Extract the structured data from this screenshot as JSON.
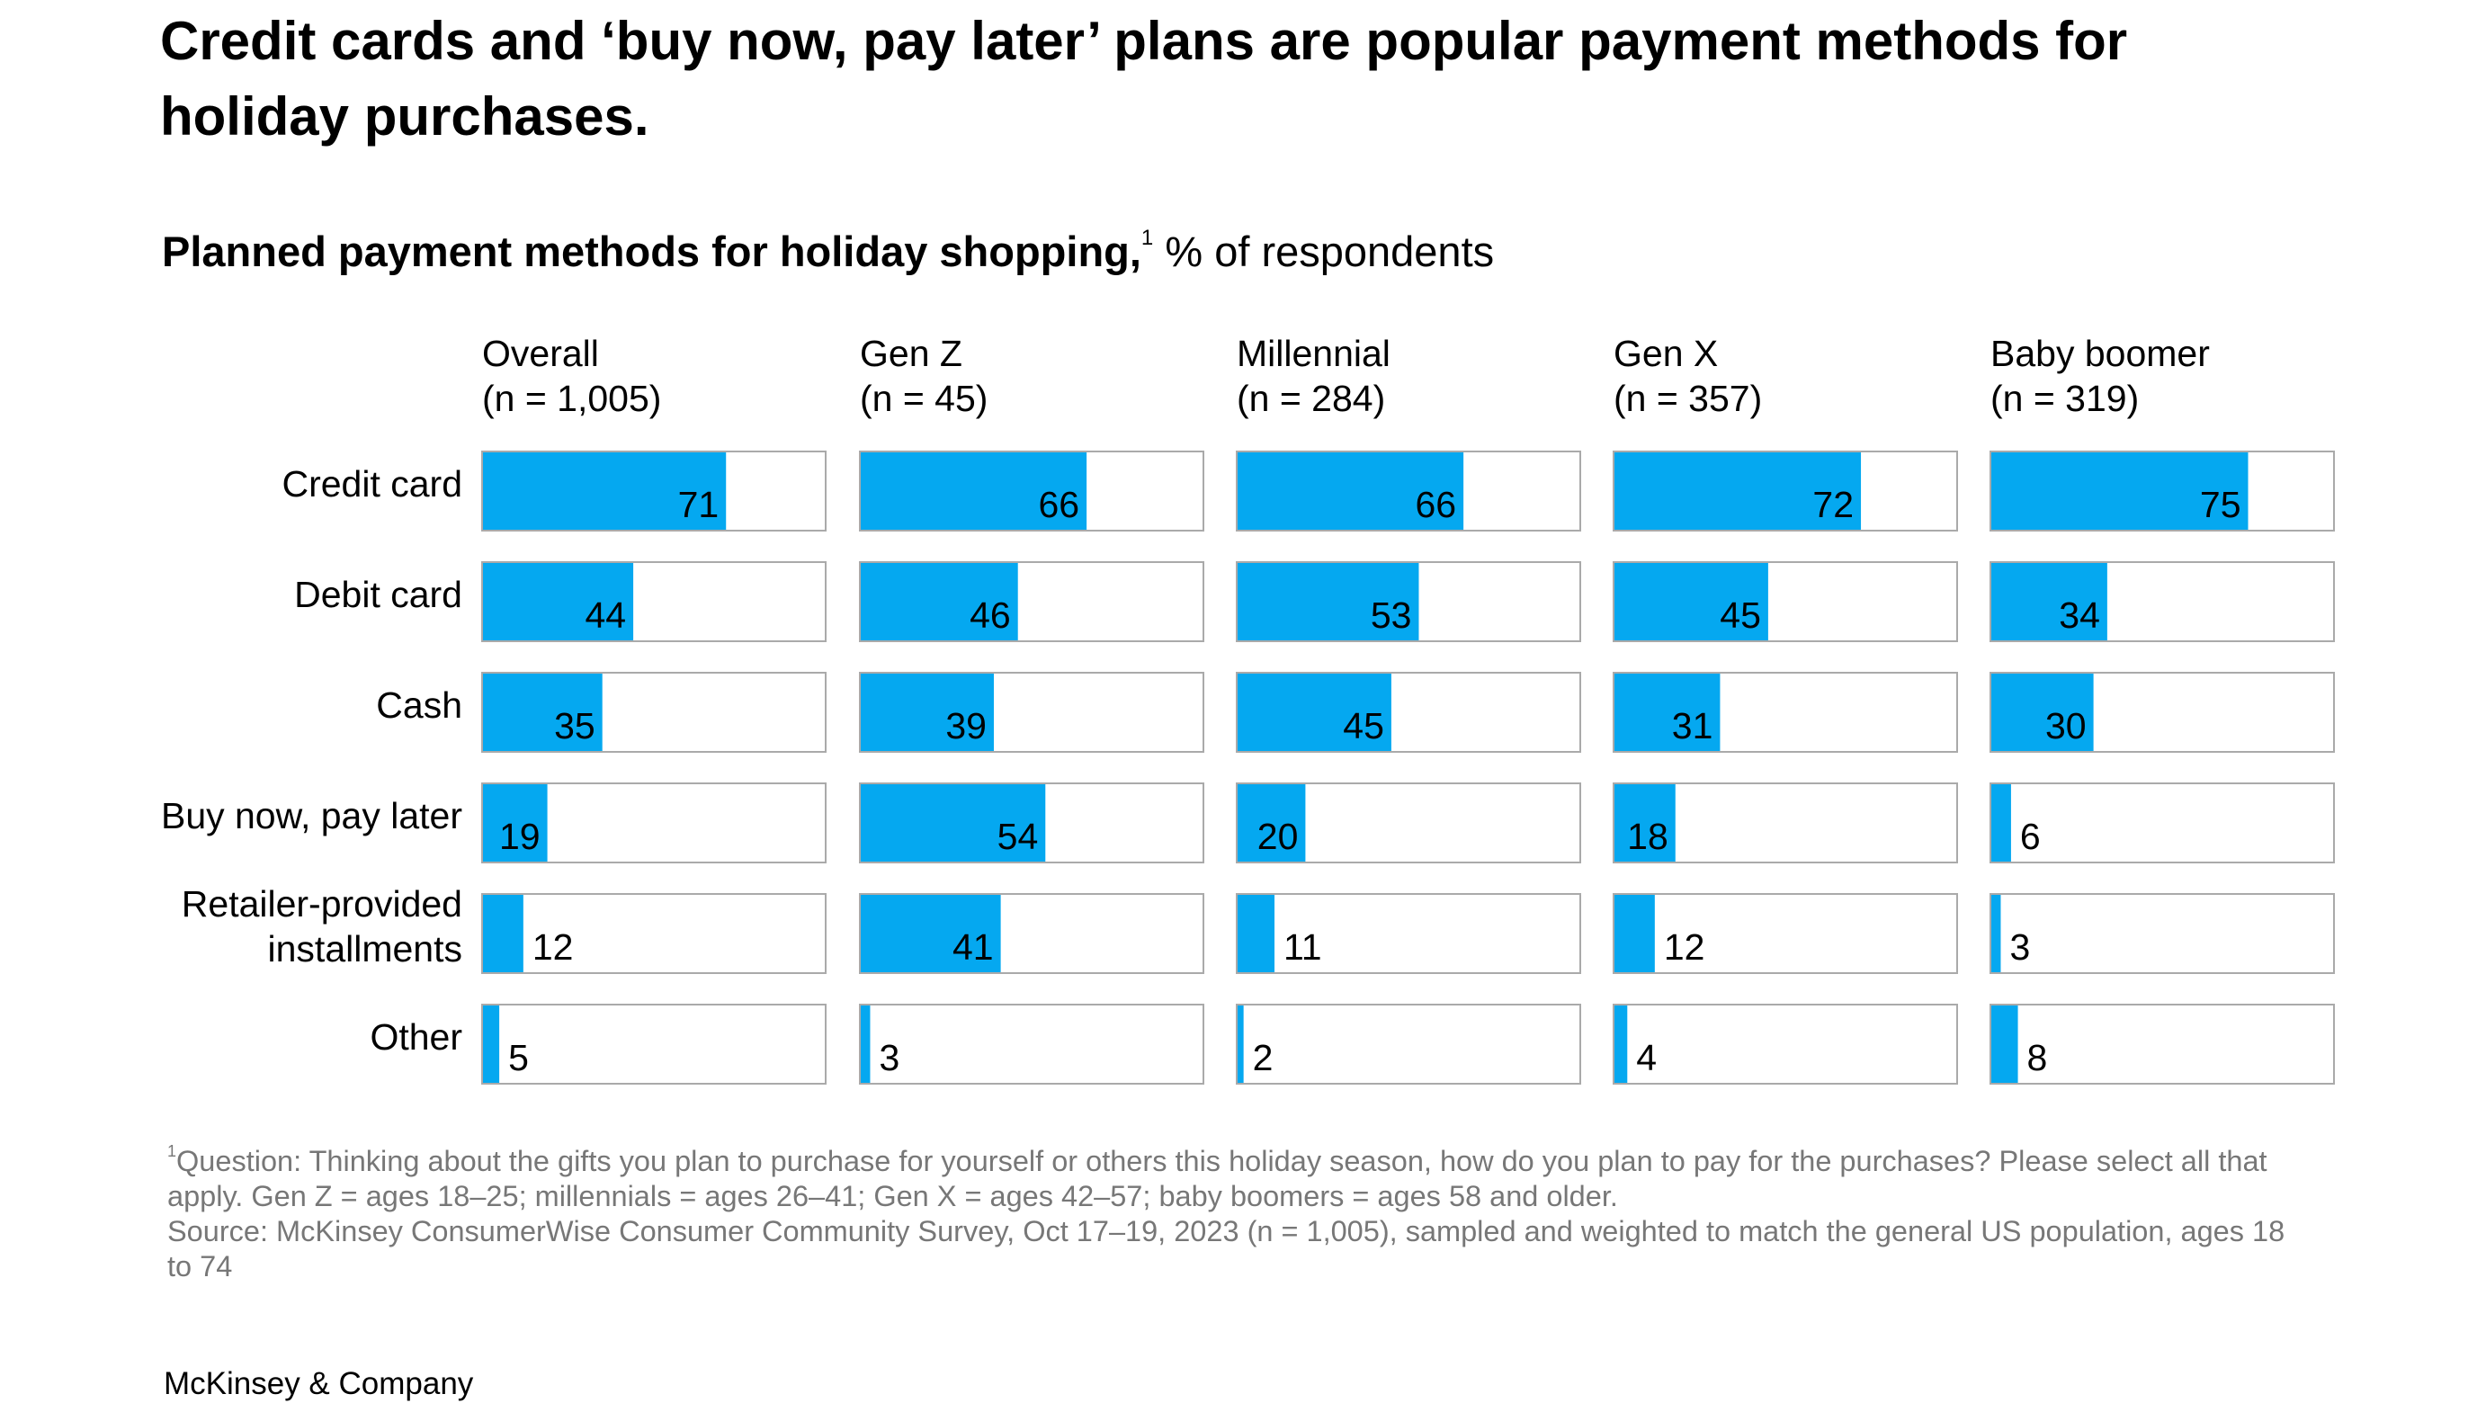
{
  "title": "Credit cards and ‘buy now, pay later’ plans are popular payment methods for holiday purchases.",
  "subtitle": {
    "bold": "Planned payment methods for holiday shopping,",
    "sup": "1",
    "unit": " % of respondents"
  },
  "footnote": {
    "sup": "1",
    "question": "Question: Thinking about the gifts you plan to purchase for yourself or others this holiday season, how do you plan to pay for the purchases? Please select all that apply. Gen Z = ages 18–25; millennials = ages 26–41; Gen X = ages 42–57; baby boomers = ages 58 and older.",
    "source": "Source: McKinsey ConsumerWise Consumer Community Survey, Oct 17–19, 2023 (n = 1,005), sampled and weighted to match the general US population, ages 18 to 74"
  },
  "brand": "McKinsey & Company",
  "colors": {
    "bar": "#05A8F0",
    "frame": "#AAAAAA",
    "text": "#000000",
    "footnote": "#777777"
  },
  "chart_data": {
    "type": "bar",
    "orientation": "horizontal",
    "title": "Planned payment methods for holiday shopping, % of respondents",
    "xlim": [
      0,
      100
    ],
    "categories": [
      "Credit card",
      "Debit card",
      "Cash",
      "Buy now, pay later",
      "Retailer-provided installments",
      "Other"
    ],
    "category_lines": [
      [
        "Credit card"
      ],
      [
        "Debit card"
      ],
      [
        "Cash"
      ],
      [
        "Buy now, pay later"
      ],
      [
        "Retailer-provided",
        "installments"
      ],
      [
        "Other"
      ]
    ],
    "series": [
      {
        "name": "Overall",
        "n_label": "(n = 1,005)",
        "values": [
          71,
          44,
          35,
          19,
          12,
          5
        ]
      },
      {
        "name": "Gen Z",
        "n_label": "(n = 45)",
        "values": [
          66,
          46,
          39,
          54,
          41,
          3
        ]
      },
      {
        "name": "Millennial",
        "n_label": "(n = 284)",
        "values": [
          66,
          53,
          45,
          20,
          11,
          2
        ]
      },
      {
        "name": "Gen X",
        "n_label": "(n = 357)",
        "values": [
          72,
          45,
          31,
          18,
          12,
          4
        ]
      },
      {
        "name": "Baby boomer",
        "n_label": "(n = 319)",
        "values": [
          75,
          34,
          30,
          6,
          3,
          8
        ]
      }
    ]
  }
}
